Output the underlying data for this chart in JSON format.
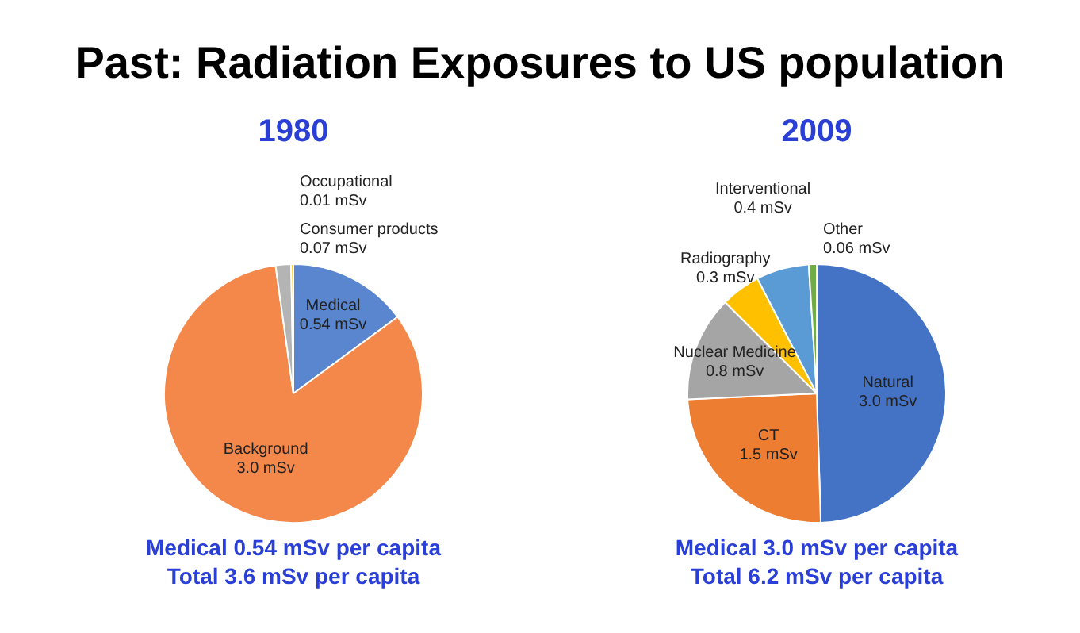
{
  "chart_data": [
    {
      "type": "pie",
      "title": "Past: Radiation Exposures to US population",
      "subtitle": "1980",
      "categories": [
        "Medical",
        "Background",
        "Consumer products",
        "Occupational"
      ],
      "values": [
        0.54,
        3.0,
        0.07,
        0.01
      ],
      "value_labels": [
        "0.54 mSv",
        "3.0 mSv",
        "0.07 mSv",
        "0.01 mSv"
      ],
      "colors": [
        "#5a86cf",
        "#f4884a",
        "#b4b4b4",
        "#ffc000"
      ],
      "annotations": [
        "Medical 0.54 mSv per capita",
        "Total 3.6 mSv per capita"
      ]
    },
    {
      "type": "pie",
      "subtitle": "2009",
      "categories": [
        "Natural",
        "CT",
        "Nuclear Medicine",
        "Radiography",
        "Interventional",
        "Other"
      ],
      "values": [
        3.0,
        1.5,
        0.8,
        0.3,
        0.4,
        0.06
      ],
      "value_labels": [
        "3.0 mSv",
        "1.5 mSv",
        "0.8 mSv",
        "0.3 mSv",
        "0.4 mSv",
        "0.06 mSv"
      ],
      "colors": [
        "#4472c4",
        "#ed7d31",
        "#a5a5a5",
        "#ffc000",
        "#5b9bd5",
        "#70ad47"
      ],
      "annotations": [
        "Medical 3.0 mSv per capita",
        "Total 6.2 mSv per capita"
      ]
    }
  ]
}
